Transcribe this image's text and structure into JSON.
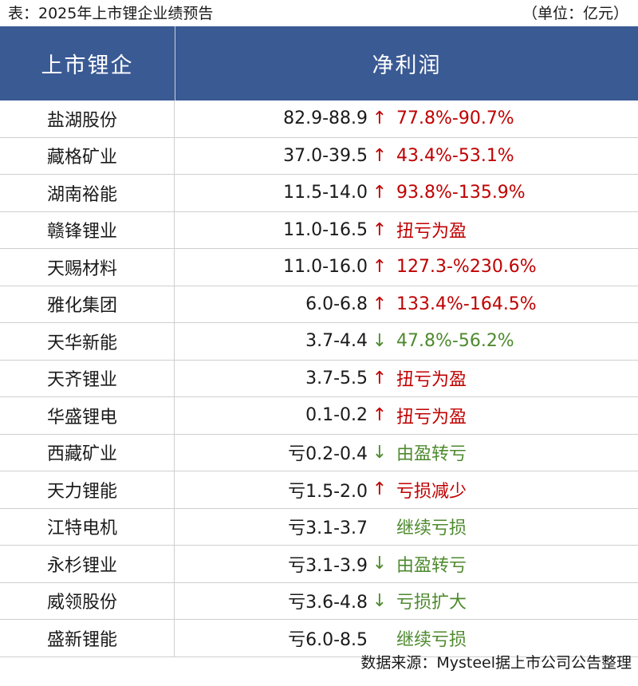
{
  "caption": {
    "title": "表：2025年上市锂企业绩预告",
    "unit": "（单位：亿元）"
  },
  "colors": {
    "header_bg": "#3a5a94",
    "up": "#c00000",
    "down": "#4e8a2e"
  },
  "header": {
    "company": "上市锂企",
    "profit": "净利润"
  },
  "rows": [
    {
      "company": "盐湖股份",
      "range": "82.9-88.9",
      "arrow": "↑",
      "change": "77.8%-90.7%",
      "dir": "up"
    },
    {
      "company": "藏格矿业",
      "range": "37.0-39.5",
      "arrow": "↑",
      "change": "43.4%-53.1%",
      "dir": "up"
    },
    {
      "company": "湖南裕能",
      "range": "11.5-14.0",
      "arrow": "↑",
      "change": "93.8%-135.9%",
      "dir": "up"
    },
    {
      "company": "赣锋锂业",
      "range": "11.0-16.5",
      "arrow": "↑",
      "change": "扭亏为盈",
      "dir": "up"
    },
    {
      "company": "天赐材料",
      "range": "11.0-16.0",
      "arrow": "↑",
      "change": "127.3-%230.6%",
      "dir": "up"
    },
    {
      "company": "雅化集团",
      "range": "6.0-6.8",
      "arrow": "↑",
      "change": "133.4%-164.5%",
      "dir": "up"
    },
    {
      "company": "天华新能",
      "range": "3.7-4.4",
      "arrow": "↓",
      "change": "47.8%-56.2%",
      "dir": "down"
    },
    {
      "company": "天齐锂业",
      "range": "3.7-5.5",
      "arrow": "↑",
      "change": "扭亏为盈",
      "dir": "up"
    },
    {
      "company": "华盛锂电",
      "range": "0.1-0.2",
      "arrow": "↑",
      "change": "扭亏为盈",
      "dir": "up"
    },
    {
      "company": "西藏矿业",
      "range": "亏0.2-0.4",
      "arrow": "↓",
      "change": "由盈转亏",
      "dir": "down"
    },
    {
      "company": "天力锂能",
      "range": "亏1.5-2.0",
      "arrow": "↑",
      "change": "亏损减少",
      "dir": "up"
    },
    {
      "company": "江特电机",
      "range": "亏3.1-3.7",
      "arrow": "",
      "change": "继续亏损",
      "dir": "flat"
    },
    {
      "company": "永杉锂业",
      "range": "亏3.1-3.9",
      "arrow": "↓",
      "change": "由盈转亏",
      "dir": "down"
    },
    {
      "company": "威领股份",
      "range": "亏3.6-4.8",
      "arrow": "↓",
      "change": "亏损扩大",
      "dir": "down"
    },
    {
      "company": "盛新锂能",
      "range": "亏6.0-8.5",
      "arrow": "",
      "change": "继续亏损",
      "dir": "flat"
    }
  ],
  "source": "数据来源：Mysteel据上市公司公告整理"
}
